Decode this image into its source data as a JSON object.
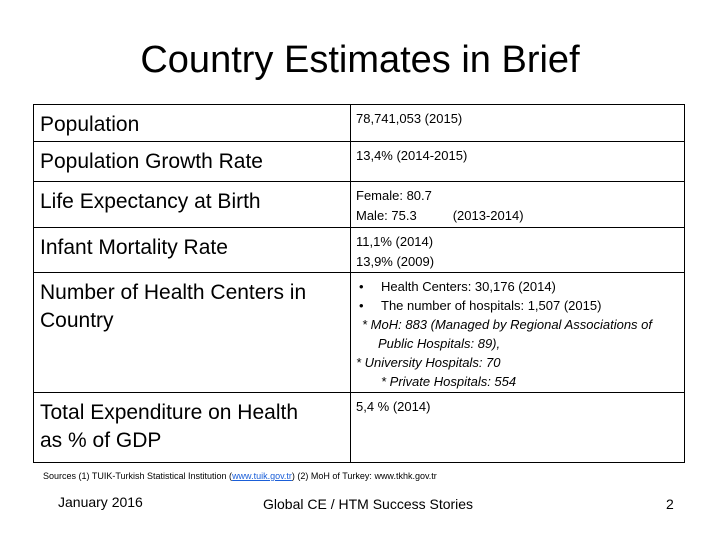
{
  "title": "Country Estimates in Brief",
  "rows": [
    {
      "label": "Population",
      "value": "78,741,053 (2015)"
    },
    {
      "label": "Population Growth Rate",
      "value": "13,4% (2014-2015)"
    },
    {
      "label": "Life Expectancy at Birth",
      "female": "Female: 80.7",
      "male": "Male: 75.3",
      "period": "(2013-2014)"
    },
    {
      "label": "Infant Mortality Rate",
      "line1": "11,1% (2014)",
      "line2": "13,9% (2009)"
    },
    {
      "label_line1": "Number of Health Centers in",
      "label_line2": "Country",
      "bullet": "•",
      "item1": "Health Centers: 30,176 (2014)",
      "item2": "The number of hospitals: 1,507 (2015)",
      "note1": "* MoH: 883 (Managed by Regional Associations of",
      "note1b": "Public Hospitals: 89),",
      "note2": "* University Hospitals: 70",
      "note3": "* Private Hospitals: 554"
    },
    {
      "label_line1": "Total Expenditure on Health",
      "label_line2": "as % of GDP",
      "value": "5,4 % (2014)"
    }
  ],
  "sources": {
    "prefix": "Sources (1) TUIK-Turkish Statistical Institution (",
    "link": "www.tuik.gov.tr",
    "suffix": ") (2) MoH of Turkey: www.tkhk.gov.tr"
  },
  "footer": {
    "date": "January 2016",
    "center": "Global CE / HTM Success Stories",
    "page": "2"
  }
}
